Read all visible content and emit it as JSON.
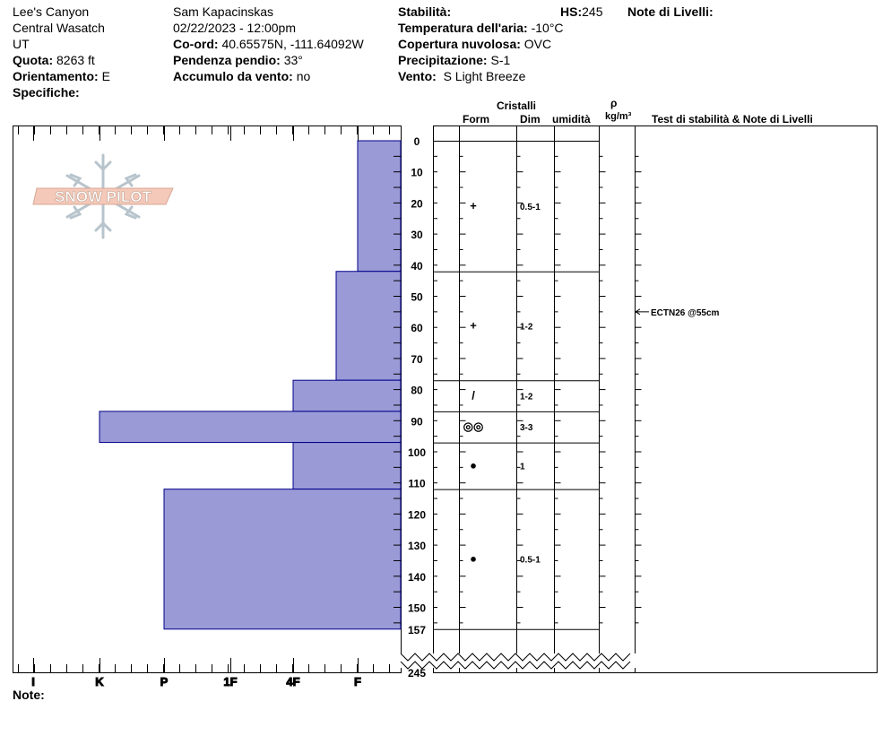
{
  "header": {
    "location_name": "Lee's Canyon",
    "range": "Central Wasatch",
    "state": "UT",
    "elevation_label": "Quota:",
    "elevation_value": "8263 ft",
    "aspect_label": "Orientamento:",
    "aspect_value": "E",
    "specifics_label": "Specifiche:",
    "observer": "Sam Kapacinskas",
    "datetime": "02/22/2023 - 12:00pm",
    "coord_label": "Co-ord:",
    "coord_value": "40.65575N, -111.64092W",
    "slope_label": "Pendenza pendio:",
    "slope_value": "33°",
    "wind_loading_label": "Accumulo da vento:",
    "wind_loading_value": "no",
    "stability_label": "Stabilità:",
    "hs_label": "HS:",
    "hs_value": "245",
    "air_temp_label": "Temperatura dell'aria:",
    "air_temp_value": "-10°C",
    "sky_label": "Copertura nuvolosa:",
    "sky_value": "OVC",
    "precip_label": "Precipitazione:",
    "precip_value": "S-1",
    "wind_label": "Vento:",
    "wind_value": "S Light Breeze",
    "layer_notes_label": "Note di Livelli:"
  },
  "columns": {
    "crystals": "Cristalli",
    "form": "Form",
    "size": "Dim",
    "moisture": "umidità",
    "rho": "ρ",
    "density_unit": "kg/m³",
    "tests_notes": "Test di stabilità & Note di Livelli"
  },
  "logo_text": "SNOW PILOT",
  "footer": {
    "notes_label": "Note:"
  },
  "colors": {
    "hardness_fill": "#9a9ad6",
    "hardness_stroke": "#00008b",
    "logo_fill": "#f4c9b9",
    "snowflake": "#b8c4cc"
  },
  "chart_data": {
    "type": "bar",
    "orientation": "horizontal",
    "depth_axis": {
      "unit": "cm",
      "ticks": [
        "0",
        "10",
        "20",
        "30",
        "40",
        "50",
        "60",
        "70",
        "80",
        "90",
        "100",
        "110",
        "120",
        "130",
        "140",
        "150",
        "157"
      ],
      "bottom_label": "245"
    },
    "hardness_axis": {
      "ticks": [
        "I",
        "K",
        "P",
        "1F",
        "4F",
        "F"
      ]
    },
    "layers": [
      {
        "top": 0,
        "bottom": 42,
        "hardness": "F",
        "form": "+",
        "size": "0.5-1"
      },
      {
        "top": 42,
        "bottom": 77,
        "hardness": "4F-",
        "form": "+",
        "size": "1-2"
      },
      {
        "top": 77,
        "bottom": 87,
        "hardness": "4F",
        "form": "/",
        "size": "1-2"
      },
      {
        "top": 87,
        "bottom": 97,
        "hardness": "K",
        "form": "◎◎",
        "size": "3-3"
      },
      {
        "top": 97,
        "bottom": 112,
        "hardness": "4F",
        "form": "●",
        "size": "1"
      },
      {
        "top": 112,
        "bottom": 157,
        "hardness": "P",
        "form": "●",
        "size": "0.5-1"
      }
    ],
    "stability_tests": [
      {
        "depth": 55,
        "label": "ECTN26 @55cm"
      }
    ]
  }
}
